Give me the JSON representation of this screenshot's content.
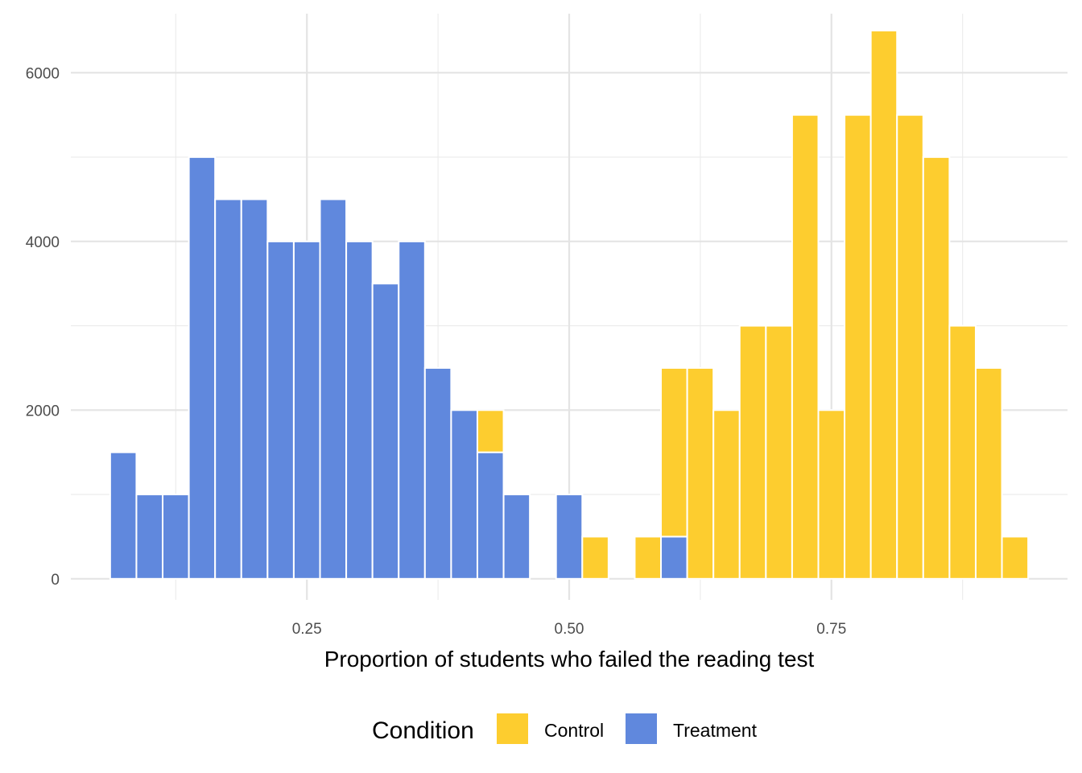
{
  "chart_data": {
    "type": "bar",
    "subtype": "stacked-histogram",
    "title": "",
    "xlabel": "Proportion of students who failed the reading test",
    "ylabel": "",
    "bin_width": 0.025,
    "xlim": [
      0.025,
      0.975
    ],
    "ylim": [
      -250,
      6700
    ],
    "x_ticks": [
      0.25,
      0.5,
      0.75
    ],
    "x_tick_labels": [
      "0.25",
      "0.50",
      "0.75"
    ],
    "y_ticks": [
      0,
      2000,
      4000,
      6000
    ],
    "y_tick_labels": [
      "0",
      "2000",
      "4000",
      "6000"
    ],
    "grid": true,
    "legend_position": "bottom",
    "legend_title": "Condition",
    "bin_centers": [
      0.075,
      0.1,
      0.125,
      0.15,
      0.175,
      0.2,
      0.225,
      0.25,
      0.275,
      0.3,
      0.325,
      0.35,
      0.375,
      0.4,
      0.425,
      0.45,
      0.475,
      0.5,
      0.525,
      0.55,
      0.575,
      0.6,
      0.625,
      0.65,
      0.675,
      0.7,
      0.725,
      0.75,
      0.775,
      0.8,
      0.825,
      0.85,
      0.875,
      0.9,
      0.925
    ],
    "series": [
      {
        "name": "Control",
        "color": "#FDCD2F",
        "values": [
          0,
          0,
          0,
          0,
          0,
          0,
          0,
          0,
          0,
          0,
          0,
          0,
          0,
          0,
          500,
          0,
          0,
          0,
          500,
          0,
          500,
          2000,
          2500,
          2000,
          3000,
          3000,
          5500,
          2000,
          5500,
          6500,
          5500,
          5000,
          3000,
          2500,
          500
        ]
      },
      {
        "name": "Treatment",
        "color": "#6088DD",
        "values": [
          1500,
          1000,
          1000,
          5000,
          4500,
          4500,
          4000,
          4000,
          4500,
          4000,
          3500,
          4000,
          2500,
          2000,
          1500,
          1000,
          0,
          1000,
          0,
          0,
          0,
          500,
          0,
          0,
          0,
          0,
          0,
          0,
          0,
          0,
          0,
          0,
          0,
          0,
          0
        ]
      }
    ]
  }
}
